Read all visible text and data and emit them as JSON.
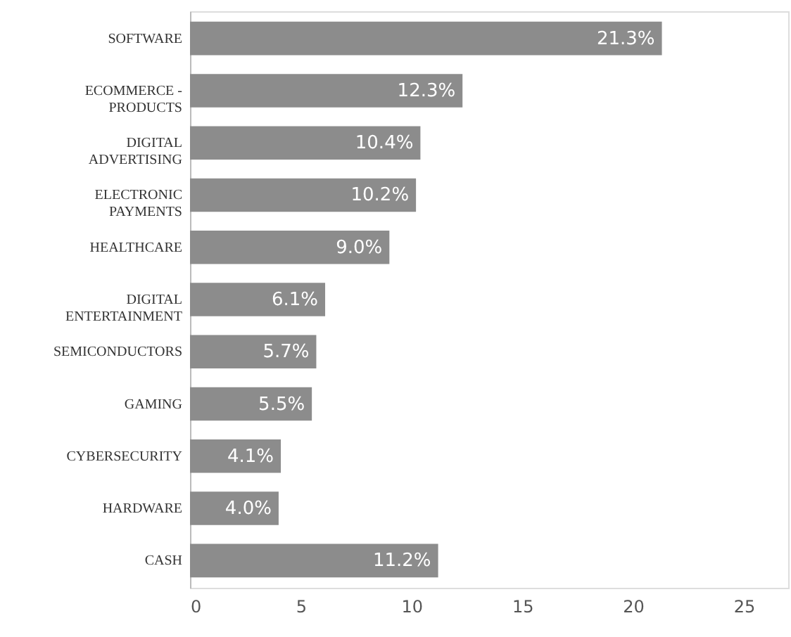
{
  "chart_data": {
    "type": "bar",
    "orientation": "horizontal",
    "categories": [
      "SOFTWARE",
      "ECOMMERCE - PRODUCTS",
      "DIGITAL ADVERTISING",
      "ELECTRONIC PAYMENTS",
      "HEALTHCARE",
      "DIGITAL ENTERTAINMENT",
      "SEMICONDUCTORS",
      "GAMING",
      "CYBERSECURITY",
      "HARDWARE",
      "CASH"
    ],
    "values": [
      21.3,
      12.3,
      10.4,
      10.2,
      9.0,
      6.1,
      5.7,
      5.5,
      4.1,
      4.0,
      11.2
    ],
    "value_labels": [
      "21.3%",
      "12.3%",
      "10.4%",
      "10.2%",
      "9.0%",
      "6.1%",
      "5.7%",
      "5.5%",
      "4.1%",
      "4.0%",
      "11.2%"
    ],
    "color": "#8c8c8c",
    "xlim": [
      0,
      27
    ],
    "xticks": [
      0,
      5,
      10,
      15,
      20,
      25
    ],
    "grid": false
  }
}
